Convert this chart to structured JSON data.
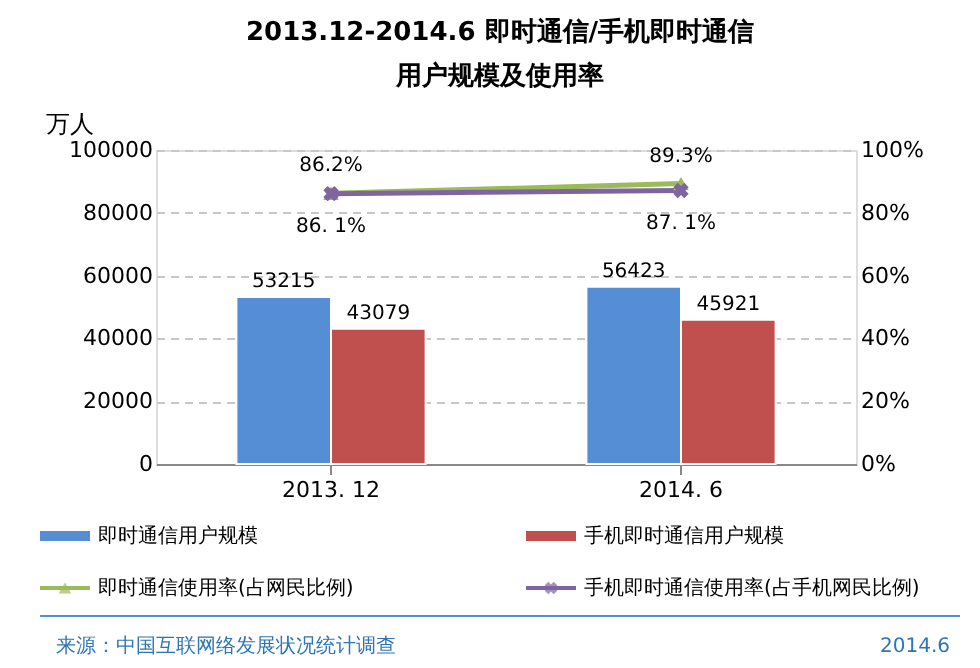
{
  "chart_data": {
    "type": "bar",
    "title": "2013.12-2014.6  即时通信/手机即时通信",
    "subtitle": "用户规模及使用率",
    "ylabel": "万人",
    "categories": [
      "2013. 12",
      "2014. 6"
    ],
    "series": [
      {
        "name": "即时通信用户规模",
        "color": "#558ed5",
        "values": [
          53215,
          56423
        ]
      },
      {
        "name": "手机即时通信用户规模",
        "color": "#c0504d",
        "values": [
          43079,
          45921
        ]
      },
      {
        "name": "即时通信使用率(占网民比例)",
        "type": "line",
        "axis": "y2",
        "marker": "triangle",
        "color": "#9bbb59",
        "values": [
          86.2,
          89.3
        ],
        "value_labels": [
          "86.2%",
          "89.3%"
        ]
      },
      {
        "name": "手机即时通信使用率(占手机网民比例)",
        "type": "line",
        "axis": "y2",
        "marker": "cross",
        "color": "#8064a2",
        "values": [
          86.1,
          87.1
        ],
        "value_labels": [
          "86. 1%",
          "87. 1%"
        ]
      }
    ],
    "data_labels": true,
    "ylim": [
      0,
      100000
    ],
    "yticks": [
      0,
      20000,
      40000,
      60000,
      80000,
      100000
    ],
    "y2lim": [
      0,
      100
    ],
    "y2ticks": [
      {
        "value": 0,
        "label": "0%"
      },
      {
        "value": 20,
        "label": "20%"
      },
      {
        "value": 40,
        "label": "40%"
      },
      {
        "value": 60,
        "label": "60%"
      },
      {
        "value": 80,
        "label": "80%"
      },
      {
        "value": 100,
        "label": "100%"
      }
    ],
    "grid": "y",
    "legend": "bottom",
    "annotations": [
      "来源：中国互联网络发展状况统计调查",
      "2014.6"
    ]
  }
}
